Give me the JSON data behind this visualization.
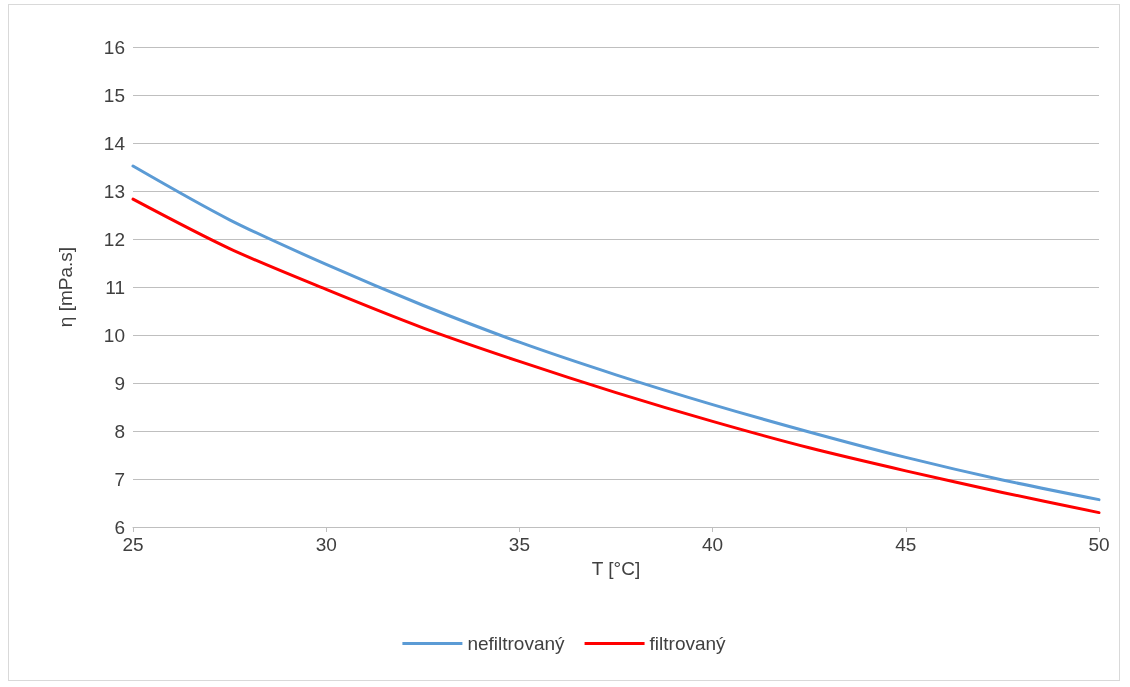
{
  "chart_data": {
    "type": "line",
    "xlabel": "T [°C]",
    "ylabel": "η [mPa.s]",
    "x": [
      25,
      27.5,
      30,
      32.5,
      35,
      37.5,
      40,
      42.5,
      45,
      47.5,
      50
    ],
    "series": [
      {
        "name": "nefiltrovaný",
        "color": "#5b9bd5",
        "values": [
          13.52,
          12.4,
          11.47,
          10.62,
          9.85,
          9.17,
          8.55,
          7.98,
          7.45,
          6.98,
          6.57
        ]
      },
      {
        "name": "filtrovaný",
        "color": "#ff0000",
        "values": [
          12.83,
          11.8,
          10.95,
          10.15,
          9.45,
          8.8,
          8.2,
          7.65,
          7.17,
          6.72,
          6.3
        ]
      }
    ],
    "xlim": [
      25,
      50
    ],
    "xticks": [
      25,
      30,
      35,
      40,
      45,
      50
    ],
    "ylim": [
      6,
      16
    ],
    "yticks": [
      6,
      7,
      8,
      9,
      10,
      11,
      12,
      13,
      14,
      15,
      16
    ],
    "grid": "y",
    "legend": "bottom",
    "marker": "none",
    "line_style": "solid"
  }
}
